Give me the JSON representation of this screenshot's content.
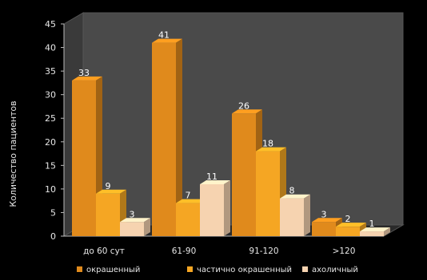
{
  "chart_data": {
    "type": "bar",
    "title": "",
    "xlabel": "",
    "ylabel": "Количество пациентов",
    "ylim": [
      0,
      45
    ],
    "yticks": [
      0,
      5,
      10,
      15,
      20,
      25,
      30,
      35,
      40,
      45
    ],
    "categories": [
      "до 60 сут",
      "61-90",
      "91-120",
      ">120"
    ],
    "series": [
      {
        "name": "окрашенный",
        "values": [
          33,
          41,
          26,
          3
        ],
        "color": "#e08a1c"
      },
      {
        "name": "частично окрашенный",
        "values": [
          9,
          7,
          18,
          2
        ],
        "color": "#f5a623"
      },
      {
        "name": "ахоличный",
        "values": [
          3,
          11,
          8,
          1
        ],
        "color": "#f6d3b0"
      }
    ],
    "grid": false,
    "legend_position": "bottom"
  }
}
